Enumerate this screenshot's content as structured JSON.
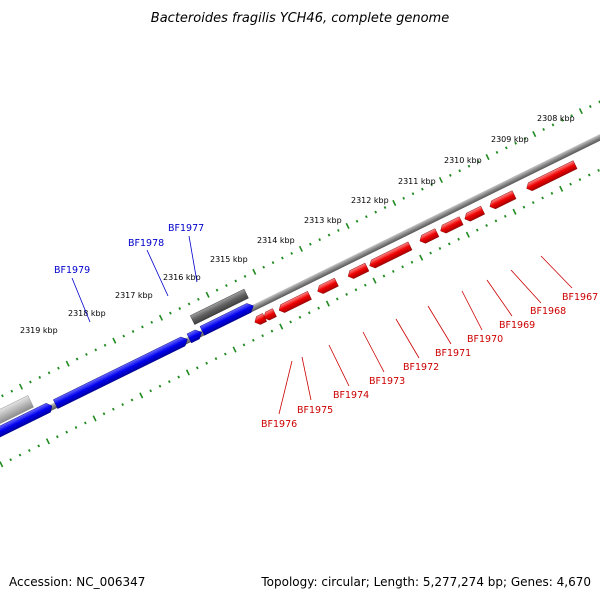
{
  "title": "Bacteroides fragilis YCH46, complete genome",
  "accession": "Accession: NC_006347",
  "summary": "Topology: circular; Length: 5,277,274 bp; Genes: 4,670",
  "colors": {
    "forward_gene": "#0000ee",
    "reverse_gene": "#ee0000",
    "grey_gene": "#606060",
    "light_gene": "#b8b8b8",
    "backbone": "#888888",
    "ticks": "#228b22"
  },
  "scale_labels": [
    "2308 kbp",
    "2309 kbp",
    "2310 kbp",
    "2311 kbp",
    "2312 kbp",
    "2313 kbp",
    "2314 kbp",
    "2315 kbp",
    "2316 kbp",
    "2317 kbp",
    "2318 kbp",
    "2319 kbp"
  ],
  "forward_labels": [
    "BF1977",
    "BF1978",
    "BF1979"
  ],
  "reverse_labels": [
    "BF1967",
    "BF1968",
    "BF1969",
    "BF1970",
    "BF1971",
    "BF1972",
    "BF1973",
    "BF1974",
    "BF1975",
    "BF1976"
  ]
}
